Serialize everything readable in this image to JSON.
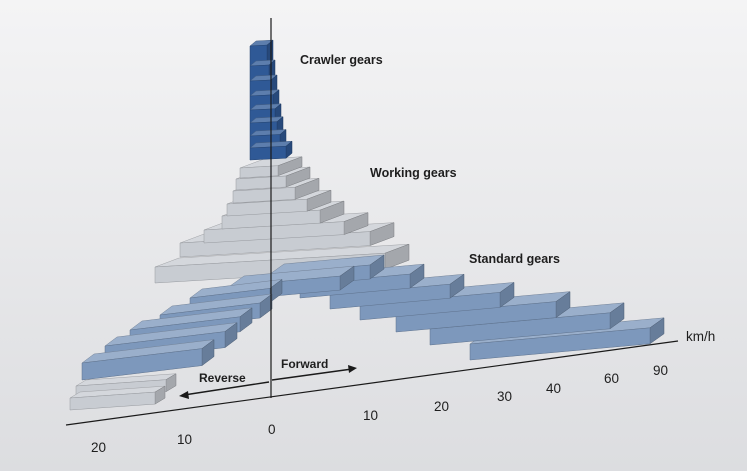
{
  "chart_data": {
    "type": "bar",
    "title": "",
    "unit": "km/h",
    "groups": [
      {
        "name": "Crawler gears",
        "label": "Crawler gears",
        "color": "#2f5996",
        "gear_count": 8
      },
      {
        "name": "Working gears",
        "label": "Working gears",
        "color": "#c8ccd2",
        "gear_count": 8
      },
      {
        "name": "Standard gears",
        "label": "Standard gears",
        "color": "#7d98bc",
        "gear_count": 8
      }
    ],
    "forward_axis": {
      "label": "Forward",
      "ticks": [
        "10",
        "20",
        "30",
        "40",
        "60",
        "90"
      ]
    },
    "reverse_axis": {
      "label": "Reverse",
      "ticks": [
        "20",
        "10"
      ]
    },
    "origin_label": "0"
  }
}
